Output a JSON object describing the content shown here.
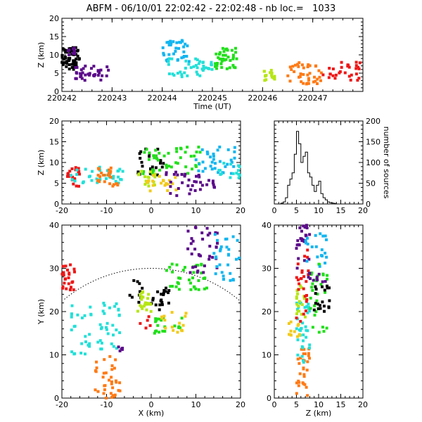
{
  "title": "ABFM - 06/10/01 22:02:42 - 22:02:48 - nb loc.=   1033",
  "colors": {
    "black": "#000000",
    "purple": "#5b0a8a",
    "skyblue": "#12b6f0",
    "cyan": "#22e0d8",
    "green": "#21e01a",
    "yellowgreen": "#b6e614",
    "yellow": "#f2ca1a",
    "orange": "#ff7a14",
    "red": "#ee1616"
  },
  "chart_data": [
    {
      "id": "time_height",
      "type": "scatter",
      "xlabel": "Time (UT)",
      "ylabel": "Z (km)",
      "xlim": [
        220242,
        220248
      ],
      "ylim": [
        0,
        20
      ],
      "x_ticks": [
        220242,
        220243,
        220244,
        220245,
        220246,
        220247
      ],
      "y_ticks": [
        0,
        5,
        10,
        15,
        20
      ],
      "clusters": [
        {
          "color": "black",
          "x": [
            220242.0,
            220242.35
          ],
          "y": [
            6,
            12
          ],
          "n": 60
        },
        {
          "color": "purple",
          "x": [
            220242.05,
            220242.35
          ],
          "y": [
            10,
            12
          ],
          "n": 10
        },
        {
          "color": "purple",
          "x": [
            220242.2,
            220242.95
          ],
          "y": [
            3,
            7
          ],
          "n": 35
        },
        {
          "color": "skyblue",
          "x": [
            220244.0,
            220244.55
          ],
          "y": [
            8,
            14
          ],
          "n": 35
        },
        {
          "color": "cyan",
          "x": [
            220244.1,
            220245.0
          ],
          "y": [
            4,
            9
          ],
          "n": 40
        },
        {
          "color": "green",
          "x": [
            220245.05,
            220245.5
          ],
          "y": [
            6,
            12
          ],
          "n": 40
        },
        {
          "color": "yellowgreen",
          "x": [
            220246.0,
            220246.25
          ],
          "y": [
            3,
            6
          ],
          "n": 15
        },
        {
          "color": "orange",
          "x": [
            220246.5,
            220247.2
          ],
          "y": [
            2,
            8
          ],
          "n": 40
        },
        {
          "color": "red",
          "x": [
            220247.2,
            220247.95
          ],
          "y": [
            3,
            8
          ],
          "n": 30
        }
      ]
    },
    {
      "id": "x_height",
      "type": "scatter",
      "xlabel": "",
      "ylabel": "Z (km)",
      "xlim": [
        -20,
        20
      ],
      "ylim": [
        0,
        20
      ],
      "x_ticks": [
        -20,
        -10,
        0,
        10,
        20
      ],
      "y_ticks": [
        0,
        5,
        10,
        15,
        20
      ],
      "clusters": [
        {
          "color": "red",
          "x": [
            -19,
            -16
          ],
          "y": [
            4,
            9
          ],
          "n": 20
        },
        {
          "color": "cyan",
          "x": [
            -18,
            -6
          ],
          "y": [
            5,
            9
          ],
          "n": 35
        },
        {
          "color": "orange",
          "x": [
            -12,
            -7
          ],
          "y": [
            4,
            9
          ],
          "n": 25
        },
        {
          "color": "black",
          "x": [
            -3,
            3
          ],
          "y": [
            7,
            14
          ],
          "n": 25
        },
        {
          "color": "green",
          "x": [
            -2,
            11
          ],
          "y": [
            7,
            14
          ],
          "n": 45
        },
        {
          "color": "yellowgreen",
          "x": [
            -3,
            1
          ],
          "y": [
            4,
            8
          ],
          "n": 15
        },
        {
          "color": "yellow",
          "x": [
            -1,
            6
          ],
          "y": [
            3,
            7
          ],
          "n": 20
        },
        {
          "color": "purple",
          "x": [
            3,
            15
          ],
          "y": [
            2,
            8
          ],
          "n": 35
        },
        {
          "color": "skyblue",
          "x": [
            10,
            19
          ],
          "y": [
            7,
            14
          ],
          "n": 35
        },
        {
          "color": "cyan",
          "x": [
            15,
            20
          ],
          "y": [
            6,
            10
          ],
          "n": 15
        }
      ]
    },
    {
      "id": "height_histogram",
      "type": "histogram",
      "xlabel": "",
      "ylabel": "number of sources",
      "xlim": [
        0,
        20
      ],
      "ylim": [
        0,
        200
      ],
      "x_ticks": [
        0,
        5,
        10,
        15,
        20
      ],
      "y_ticks": [
        0,
        50,
        100,
        150,
        200
      ],
      "bin_width": 0.5,
      "bin_start": 0,
      "values": [
        0,
        0,
        0,
        2,
        5,
        15,
        45,
        60,
        75,
        120,
        175,
        145,
        100,
        115,
        125,
        75,
        65,
        45,
        30,
        45,
        55,
        25,
        15,
        10,
        5,
        3,
        2,
        1,
        0,
        0,
        0,
        0,
        0,
        0,
        0,
        0,
        0,
        0,
        0,
        0
      ]
    },
    {
      "id": "plan_view",
      "type": "scatter",
      "xlabel": "X (km)",
      "ylabel": "Y (km)",
      "xlim": [
        -20,
        20
      ],
      "ylim": [
        0,
        40
      ],
      "x_ticks": [
        -20,
        -10,
        0,
        10,
        20
      ],
      "y_ticks": [
        0,
        10,
        20,
        30,
        40
      ],
      "range_circle": {
        "center": [
          0,
          0
        ],
        "radius": 30
      },
      "clusters": [
        {
          "color": "red",
          "x": [
            -20,
            -17
          ],
          "y": [
            25,
            31
          ],
          "n": 25
        },
        {
          "color": "red",
          "x": [
            -3,
            0
          ],
          "y": [
            16,
            19
          ],
          "n": 5
        },
        {
          "color": "cyan",
          "x": [
            -18,
            -13
          ],
          "y": [
            10,
            22
          ],
          "n": 25
        },
        {
          "color": "cyan",
          "x": [
            -12,
            -7
          ],
          "y": [
            11,
            22
          ],
          "n": 30
        },
        {
          "color": "orange",
          "x": [
            -13,
            -7
          ],
          "y": [
            0,
            10
          ],
          "n": 35
        },
        {
          "color": "purple",
          "x": [
            -8,
            -6
          ],
          "y": [
            10,
            12
          ],
          "n": 5
        },
        {
          "color": "black",
          "x": [
            -5,
            -2
          ],
          "y": [
            22,
            28
          ],
          "n": 10
        },
        {
          "color": "black",
          "x": [
            0,
            4
          ],
          "y": [
            20,
            26
          ],
          "n": 20
        },
        {
          "color": "yellowgreen",
          "x": [
            -3,
            0
          ],
          "y": [
            20,
            25
          ],
          "n": 25
        },
        {
          "color": "green",
          "x": [
            0,
            7
          ],
          "y": [
            15,
            19
          ],
          "n": 20
        },
        {
          "color": "green",
          "x": [
            3,
            13
          ],
          "y": [
            25,
            31
          ],
          "n": 35
        },
        {
          "color": "yellow",
          "x": [
            2,
            8
          ],
          "y": [
            15,
            20
          ],
          "n": 15
        },
        {
          "color": "purple",
          "x": [
            8,
            15
          ],
          "y": [
            29,
            40
          ],
          "n": 35
        },
        {
          "color": "skyblue",
          "x": [
            14,
            20
          ],
          "y": [
            27,
            38
          ],
          "n": 30
        }
      ]
    },
    {
      "id": "z_plan",
      "type": "scatter",
      "xlabel": "Z (km)",
      "ylabel": "",
      "xlim": [
        0,
        20
      ],
      "ylim": [
        0,
        40
      ],
      "x_ticks": [
        0,
        5,
        10,
        15,
        20
      ],
      "y_ticks": [
        0,
        10,
        20,
        30,
        40
      ],
      "clusters": [
        {
          "color": "orange",
          "x": [
            5,
            8
          ],
          "y": [
            0,
            12
          ],
          "n": 30
        },
        {
          "color": "cyan",
          "x": [
            5,
            8
          ],
          "y": [
            8,
            24
          ],
          "n": 35
        },
        {
          "color": "yellowgreen",
          "x": [
            5,
            7
          ],
          "y": [
            18,
            26
          ],
          "n": 20
        },
        {
          "color": "red",
          "x": [
            5,
            8
          ],
          "y": [
            16,
            35
          ],
          "n": 25
        },
        {
          "color": "yellow",
          "x": [
            3,
            6
          ],
          "y": [
            14,
            20
          ],
          "n": 12
        },
        {
          "color": "green",
          "x": [
            8,
            12
          ],
          "y": [
            15,
            31
          ],
          "n": 30
        },
        {
          "color": "purple",
          "x": [
            5,
            8
          ],
          "y": [
            30,
            40
          ],
          "n": 25
        },
        {
          "color": "black",
          "x": [
            9,
            13
          ],
          "y": [
            20,
            26
          ],
          "n": 20
        },
        {
          "color": "skyblue",
          "x": [
            7,
            12
          ],
          "y": [
            30,
            38
          ],
          "n": 20
        },
        {
          "color": "purple",
          "x": [
            7,
            12
          ],
          "y": [
            26,
            29
          ],
          "n": 10
        }
      ]
    }
  ]
}
